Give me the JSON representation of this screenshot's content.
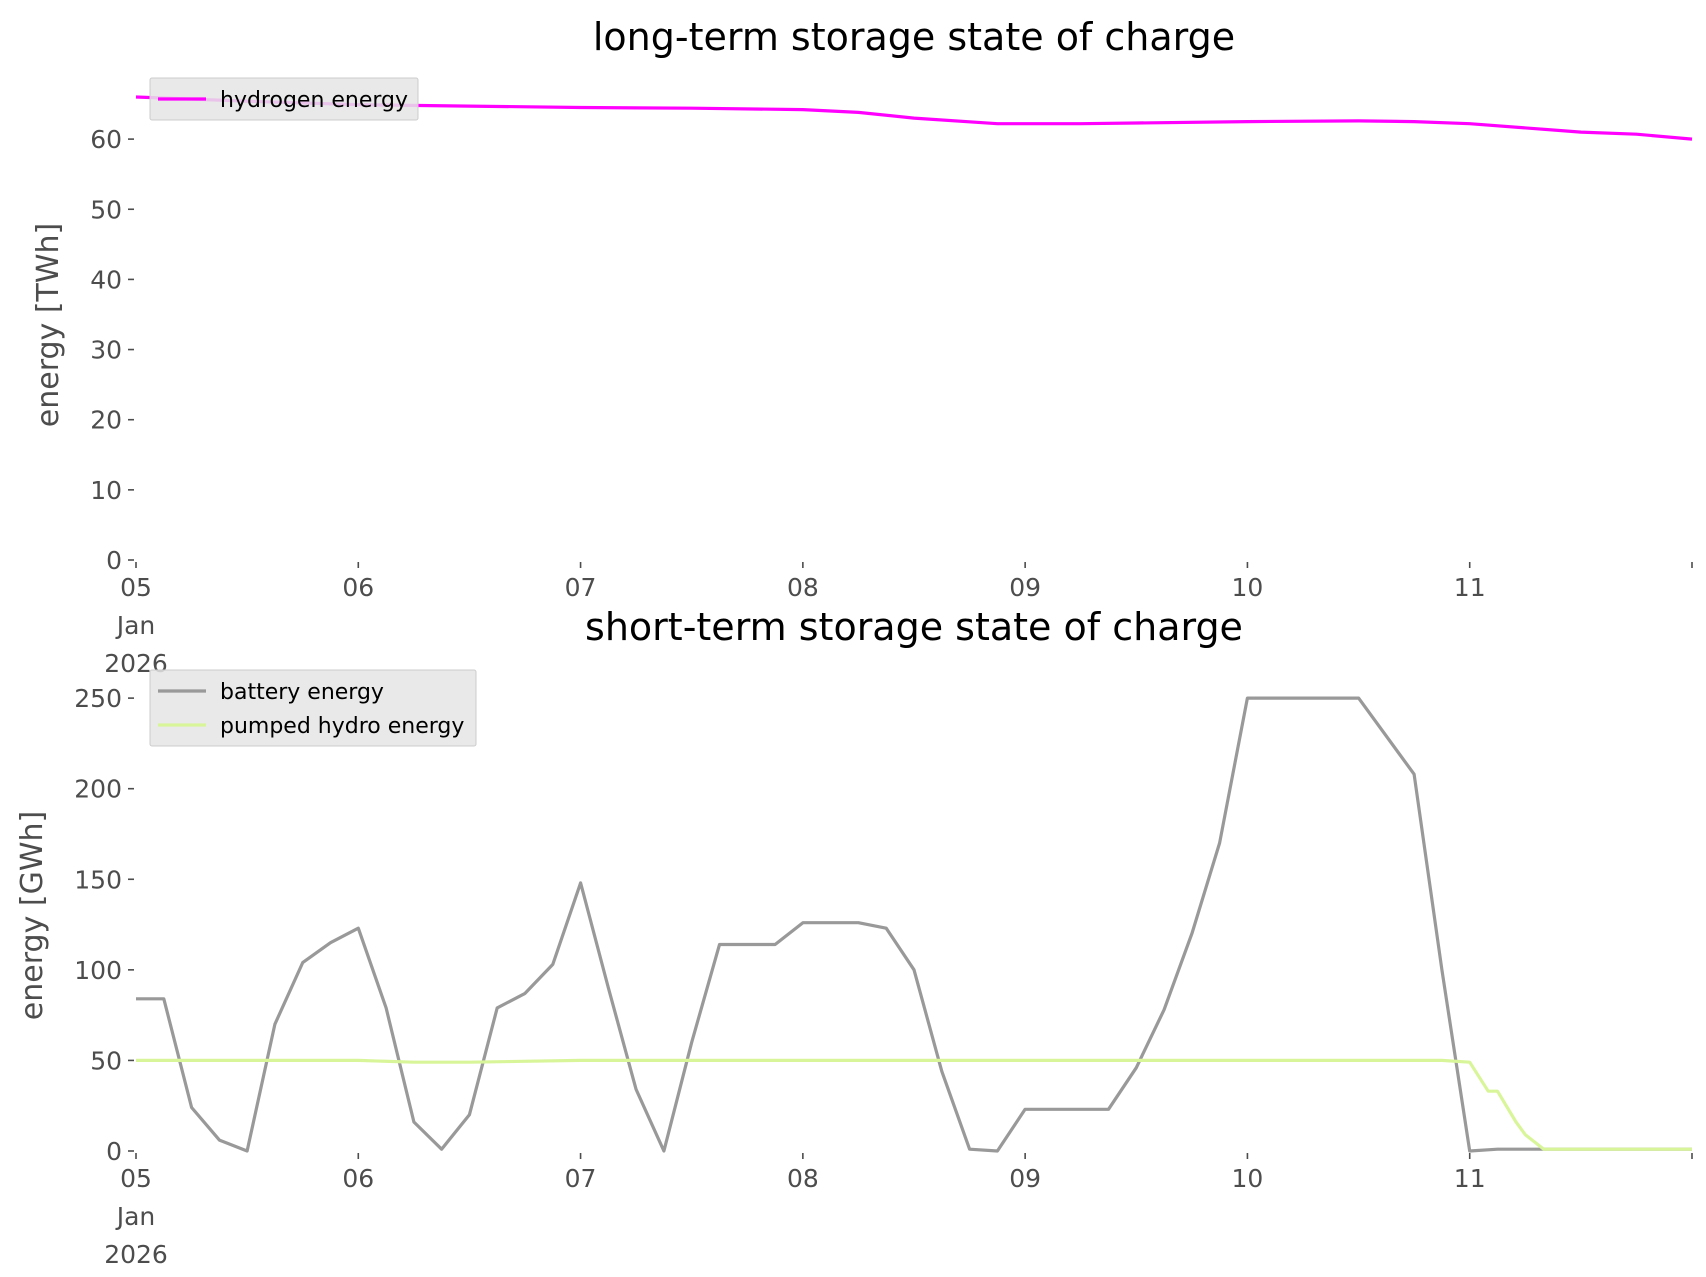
{
  "chart_data": [
    {
      "type": "line",
      "title": "long-term storage state of charge",
      "ylabel": "energy [TWh]",
      "xlabel": "",
      "ylim": [
        0,
        67
      ],
      "yticks": [
        0,
        10,
        20,
        30,
        40,
        50,
        60
      ],
      "xlim": [
        "2026-01-05T00:00",
        "2026-01-12T00:00"
      ],
      "xticks": [
        {
          "date": "2026-01-05",
          "label": [
            "05",
            "Jan",
            "2026"
          ]
        },
        {
          "date": "2026-01-06",
          "label": [
            "06"
          ]
        },
        {
          "date": "2026-01-07",
          "label": [
            "07"
          ]
        },
        {
          "date": "2026-01-08",
          "label": [
            "08"
          ]
        },
        {
          "date": "2026-01-09",
          "label": [
            "09"
          ]
        },
        {
          "date": "2026-01-10",
          "label": [
            "10"
          ]
        },
        {
          "date": "2026-01-11",
          "label": [
            "11"
          ]
        },
        {
          "date": "2026-01-12",
          "label": [
            ""
          ]
        }
      ],
      "grid": false,
      "legend_position": "top-left",
      "series": [
        {
          "name": "hydrogen energy",
          "color": "#ff00ff",
          "points": [
            [
              "2026-01-05T00:00",
              66.0
            ],
            [
              "2026-01-05T12:00",
              65.4
            ],
            [
              "2026-01-06T00:00",
              64.9
            ],
            [
              "2026-01-06T12:00",
              64.7
            ],
            [
              "2026-01-07T00:00",
              64.5
            ],
            [
              "2026-01-07T12:00",
              64.4
            ],
            [
              "2026-01-08T00:00",
              64.2
            ],
            [
              "2026-01-08T06:00",
              63.8
            ],
            [
              "2026-01-08T12:00",
              63.0
            ],
            [
              "2026-01-08T21:00",
              62.2
            ],
            [
              "2026-01-09T06:00",
              62.2
            ],
            [
              "2026-01-09T12:00",
              62.3
            ],
            [
              "2026-01-10T00:00",
              62.5
            ],
            [
              "2026-01-10T12:00",
              62.6
            ],
            [
              "2026-01-10T18:00",
              62.5
            ],
            [
              "2026-01-11T00:00",
              62.2
            ],
            [
              "2026-01-11T12:00",
              61.0
            ],
            [
              "2026-01-11T18:00",
              60.7
            ],
            [
              "2026-01-12T00:00",
              60.0
            ]
          ]
        }
      ]
    },
    {
      "type": "line",
      "title": "short-term storage state of charge",
      "ylabel": "energy [GWh]",
      "xlabel": "",
      "ylim": [
        0,
        260
      ],
      "yticks": [
        0,
        50,
        100,
        150,
        200,
        250
      ],
      "xlim": [
        "2026-01-05T00:00",
        "2026-01-12T00:00"
      ],
      "xticks": [
        {
          "date": "2026-01-05",
          "label": [
            "05",
            "Jan",
            "2026"
          ]
        },
        {
          "date": "2026-01-06",
          "label": [
            "06"
          ]
        },
        {
          "date": "2026-01-07",
          "label": [
            "07"
          ]
        },
        {
          "date": "2026-01-08",
          "label": [
            "08"
          ]
        },
        {
          "date": "2026-01-09",
          "label": [
            "09"
          ]
        },
        {
          "date": "2026-01-10",
          "label": [
            "10"
          ]
        },
        {
          "date": "2026-01-11",
          "label": [
            "11"
          ]
        },
        {
          "date": "2026-01-12",
          "label": [
            ""
          ]
        }
      ],
      "grid": false,
      "legend_position": "top-left",
      "series": [
        {
          "name": "battery energy",
          "color": "#999999",
          "points": [
            [
              "2026-01-05T00:00",
              84
            ],
            [
              "2026-01-05T03:00",
              84
            ],
            [
              "2026-01-05T06:00",
              24
            ],
            [
              "2026-01-05T09:00",
              6
            ],
            [
              "2026-01-05T12:00",
              0
            ],
            [
              "2026-01-05T15:00",
              70
            ],
            [
              "2026-01-05T18:00",
              104
            ],
            [
              "2026-01-05T21:00",
              115
            ],
            [
              "2026-01-06T00:00",
              123
            ],
            [
              "2026-01-06T03:00",
              79
            ],
            [
              "2026-01-06T06:00",
              16
            ],
            [
              "2026-01-06T09:00",
              1
            ],
            [
              "2026-01-06T12:00",
              20
            ],
            [
              "2026-01-06T15:00",
              79
            ],
            [
              "2026-01-06T18:00",
              87
            ],
            [
              "2026-01-06T21:00",
              103
            ],
            [
              "2026-01-07T00:00",
              148
            ],
            [
              "2026-01-07T03:00",
              90
            ],
            [
              "2026-01-07T06:00",
              34
            ],
            [
              "2026-01-07T09:00",
              0
            ],
            [
              "2026-01-07T12:00",
              60
            ],
            [
              "2026-01-07T15:00",
              114
            ],
            [
              "2026-01-07T18:00",
              114
            ],
            [
              "2026-01-07T21:00",
              114
            ],
            [
              "2026-01-08T00:00",
              126
            ],
            [
              "2026-01-08T03:00",
              126
            ],
            [
              "2026-01-08T06:00",
              126
            ],
            [
              "2026-01-08T09:00",
              123
            ],
            [
              "2026-01-08T12:00",
              100
            ],
            [
              "2026-01-08T15:00",
              44
            ],
            [
              "2026-01-08T18:00",
              1
            ],
            [
              "2026-01-08T21:00",
              0
            ],
            [
              "2026-01-09T00:00",
              23
            ],
            [
              "2026-01-09T03:00",
              23
            ],
            [
              "2026-01-09T06:00",
              23
            ],
            [
              "2026-01-09T09:00",
              23
            ],
            [
              "2026-01-09T12:00",
              46
            ],
            [
              "2026-01-09T15:00",
              78
            ],
            [
              "2026-01-09T18:00",
              120
            ],
            [
              "2026-01-09T21:00",
              170
            ],
            [
              "2026-01-10T00:00",
              250
            ],
            [
              "2026-01-10T06:00",
              250
            ],
            [
              "2026-01-10T12:00",
              250
            ],
            [
              "2026-01-10T18:00",
              208
            ],
            [
              "2026-01-10T21:00",
              100
            ],
            [
              "2026-01-11T00:00",
              0
            ],
            [
              "2026-01-11T03:00",
              1
            ],
            [
              "2026-01-11T06:00",
              1
            ],
            [
              "2026-01-11T12:00",
              1
            ],
            [
              "2026-01-12T00:00",
              1
            ]
          ]
        },
        {
          "name": "pumped hydro energy",
          "color": "#d9f59a",
          "points": [
            [
              "2026-01-05T00:00",
              50
            ],
            [
              "2026-01-06T00:00",
              50
            ],
            [
              "2026-01-06T06:00",
              49
            ],
            [
              "2026-01-06T12:00",
              49
            ],
            [
              "2026-01-07T00:00",
              50
            ],
            [
              "2026-01-08T00:00",
              50
            ],
            [
              "2026-01-09T00:00",
              50
            ],
            [
              "2026-01-10T00:00",
              50
            ],
            [
              "2026-01-10T21:00",
              50
            ],
            [
              "2026-01-11T00:00",
              49
            ],
            [
              "2026-01-11T02:00",
              33
            ],
            [
              "2026-01-11T03:00",
              33
            ],
            [
              "2026-01-11T05:00",
              16
            ],
            [
              "2026-01-11T06:00",
              9
            ],
            [
              "2026-01-11T08:00",
              1
            ],
            [
              "2026-01-12T00:00",
              1
            ]
          ]
        }
      ]
    }
  ]
}
